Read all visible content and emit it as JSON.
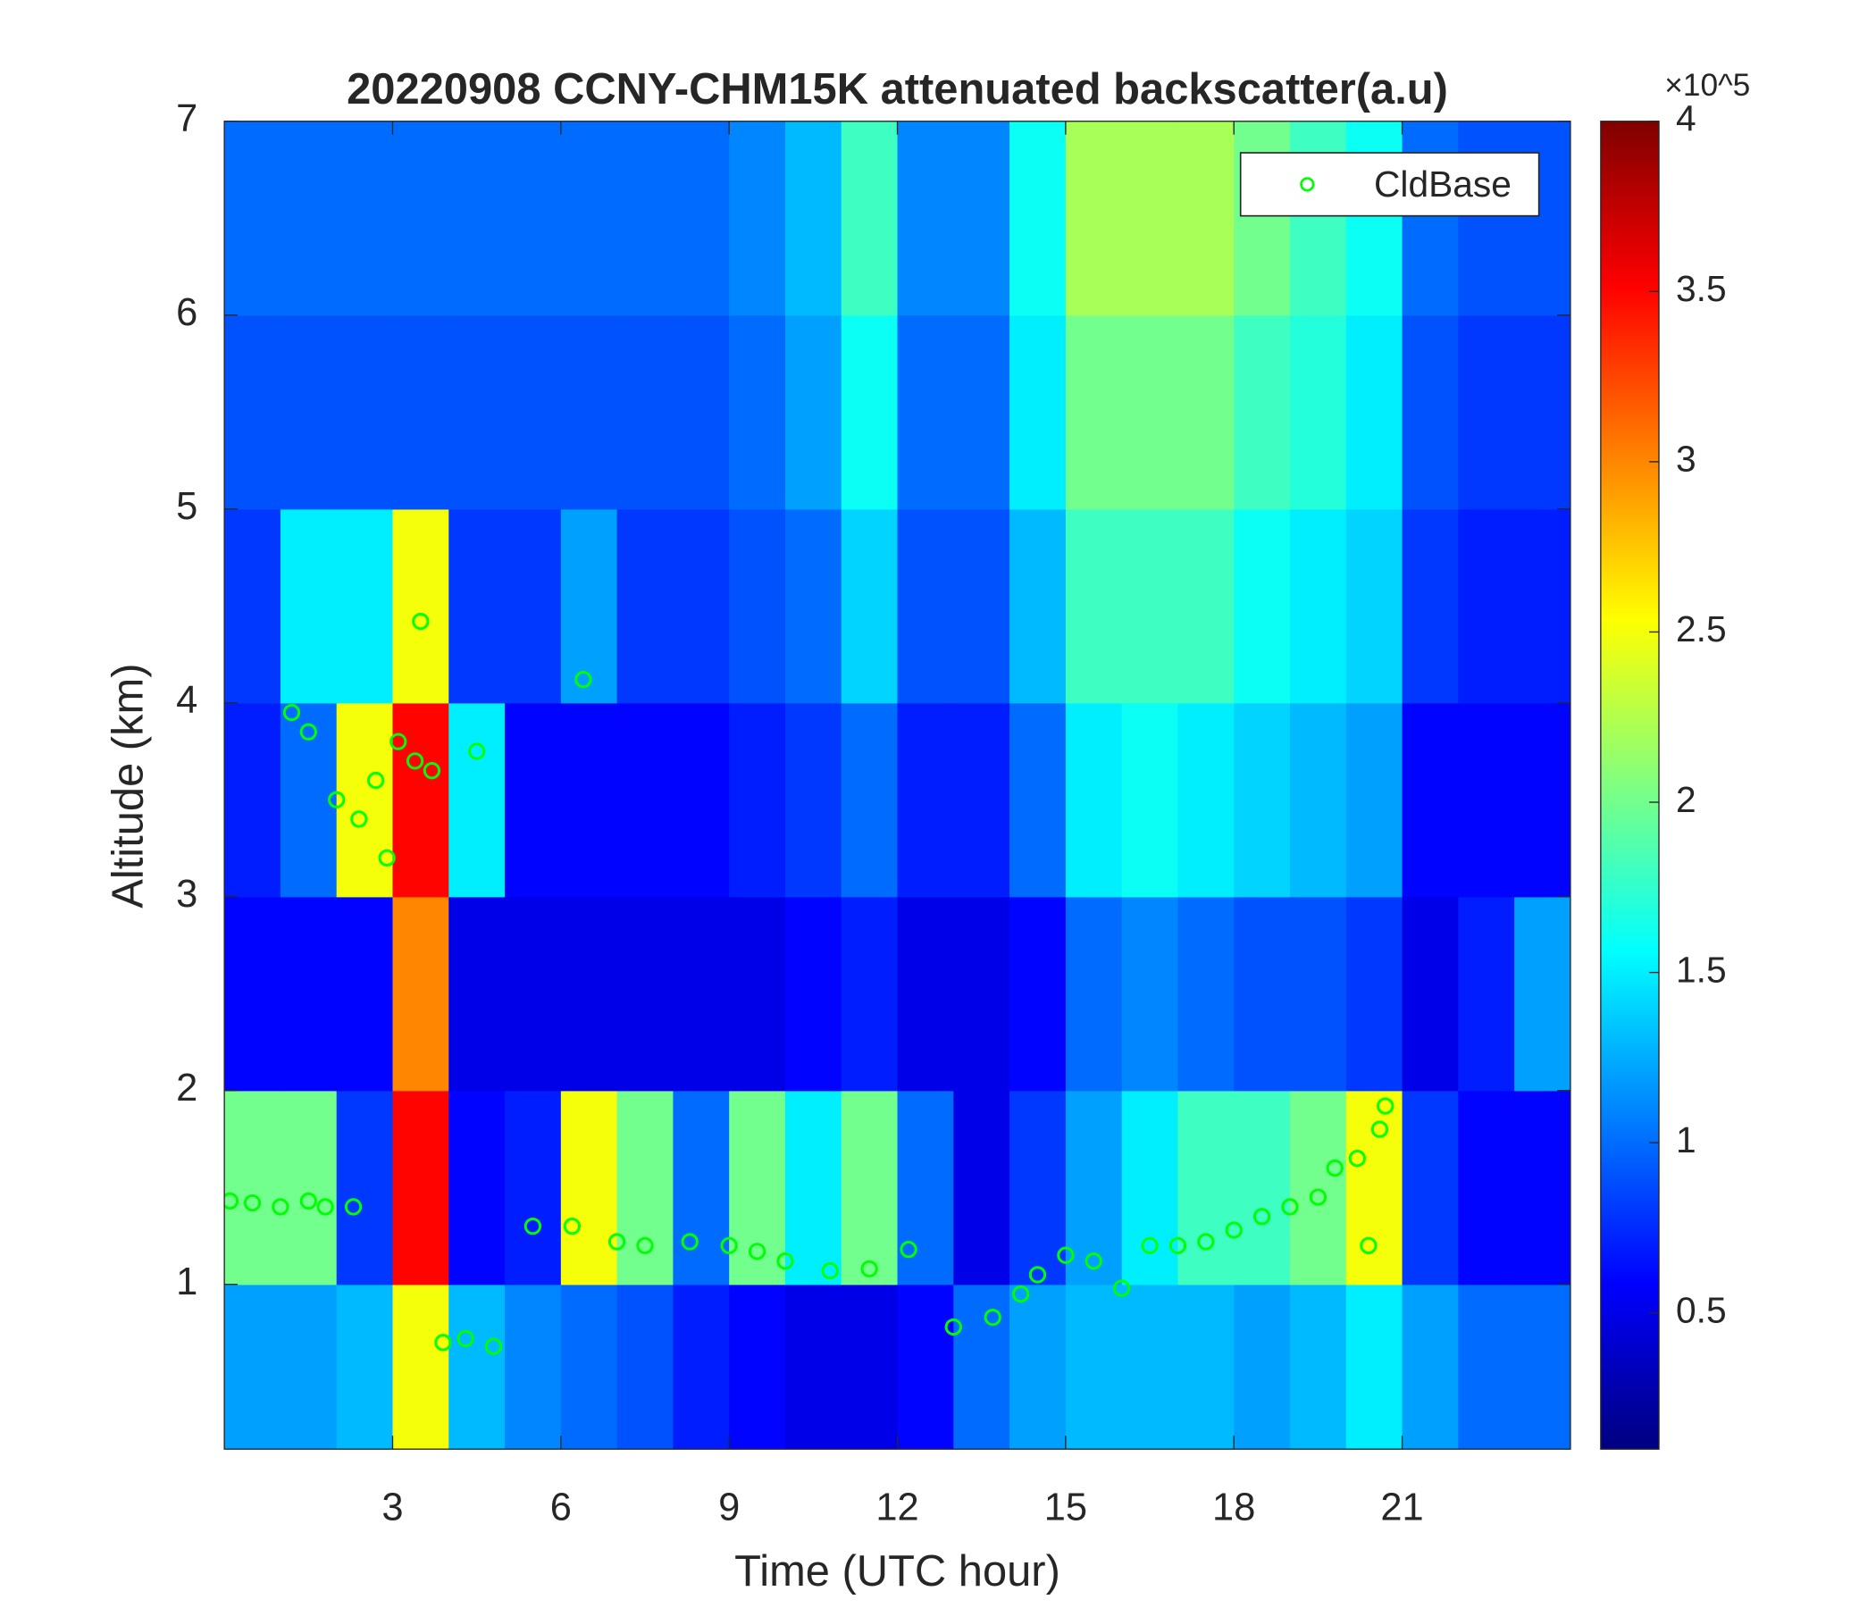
{
  "chart_data": {
    "type": "heatmap",
    "title": "20220908 CCNY-CHM15K attenuated backscatter(a.u)",
    "x_label": "Time (UTC hour)",
    "y_label": "Altitude (km)",
    "x": [
      0.5,
      1.5,
      2.5,
      3.5,
      4.5,
      5.5,
      6.5,
      7.5,
      8.5,
      9.5,
      10.5,
      11.5,
      12.5,
      13.5,
      14.5,
      15.5,
      16.5,
      17.5,
      18.5,
      19.5,
      20.5,
      21.5,
      22.5,
      23.5
    ],
    "y": [
      0.5,
      1.5,
      2.5,
      3.5,
      4.5,
      5.5,
      6.5
    ],
    "z": [
      [
        1.2,
        1.2,
        1.3,
        2.5,
        1.3,
        1.1,
        1.0,
        0.9,
        0.7,
        0.6,
        0.5,
        0.5,
        0.6,
        1.0,
        1.2,
        1.3,
        1.3,
        1.3,
        1.2,
        1.3,
        1.5,
        1.2,
        1.0,
        1.0
      ],
      [
        2.0,
        2.0,
        0.8,
        3.5,
        0.6,
        0.7,
        2.5,
        2.0,
        1.0,
        2.0,
        1.5,
        2.0,
        1.0,
        0.5,
        0.8,
        1.2,
        1.5,
        1.8,
        1.8,
        2.0,
        2.5,
        0.8,
        0.6,
        0.6
      ],
      [
        0.6,
        0.6,
        0.6,
        3.0,
        0.5,
        0.5,
        0.5,
        0.5,
        0.5,
        0.5,
        0.6,
        0.7,
        0.5,
        0.5,
        0.6,
        1.0,
        1.1,
        1.0,
        0.9,
        0.9,
        0.8,
        0.5,
        0.7,
        1.2
      ],
      [
        0.7,
        1.0,
        2.5,
        3.5,
        1.5,
        0.6,
        0.6,
        0.6,
        0.6,
        0.7,
        0.8,
        1.0,
        0.7,
        0.7,
        1.0,
        1.5,
        1.6,
        1.5,
        1.4,
        1.3,
        1.2,
        0.6,
        0.6,
        0.6
      ],
      [
        0.8,
        1.5,
        1.5,
        2.5,
        0.8,
        0.8,
        1.2,
        0.8,
        0.8,
        0.9,
        1.0,
        1.4,
        0.9,
        0.9,
        1.3,
        1.8,
        1.8,
        1.8,
        1.6,
        1.5,
        1.4,
        0.8,
        0.7,
        0.7
      ],
      [
        0.9,
        0.9,
        0.9,
        0.9,
        0.9,
        0.9,
        0.9,
        0.9,
        0.9,
        1.0,
        1.2,
        1.6,
        1.0,
        1.0,
        1.5,
        2.0,
        2.0,
        2.0,
        1.8,
        1.7,
        1.5,
        0.9,
        0.8,
        0.8
      ],
      [
        1.0,
        1.0,
        1.0,
        1.0,
        1.0,
        1.0,
        1.0,
        1.0,
        1.0,
        1.1,
        1.3,
        1.8,
        1.1,
        1.1,
        1.6,
        2.2,
        2.2,
        2.2,
        2.0,
        1.8,
        1.6,
        1.0,
        0.9,
        0.9
      ]
    ],
    "xlim": [
      0,
      24
    ],
    "ylim": [
      0.15,
      7
    ],
    "xticks": [
      3,
      6,
      9,
      12,
      15,
      18,
      21
    ],
    "yticks": [
      1,
      2,
      3,
      4,
      5,
      6,
      7
    ],
    "colormap": "jet",
    "clim": [
      0.1,
      4
    ],
    "colorbar_ticks": [
      0.5,
      1,
      1.5,
      2,
      2.5,
      3,
      3.5,
      4
    ],
    "colorbar_exponent": "×10^5",
    "legend": "top-right",
    "overlay": {
      "type": "scatter",
      "name": "CldBase",
      "color": "#00ff00",
      "x": [
        0.1,
        0.5,
        1,
        1.5,
        1.8,
        2.3,
        1.2,
        1.5,
        2,
        2.4,
        2.7,
        2.9,
        3.1,
        3.4,
        3.7,
        4.5,
        3.5,
        6.4,
        3.9,
        4.3,
        4.8,
        5.5,
        6.2,
        7,
        7.5,
        8.3,
        9,
        9.5,
        10,
        10.8,
        11.5,
        12.2,
        13,
        13.7,
        14.2,
        14.5,
        15,
        15.5,
        16,
        16.5,
        17,
        17.5,
        18,
        18.5,
        19,
        19.5,
        19.8,
        20.2,
        20.4,
        20.6,
        20.7
      ],
      "y": [
        1.43,
        1.42,
        1.4,
        1.43,
        1.4,
        1.4,
        3.95,
        3.85,
        3.5,
        3.4,
        3.6,
        3.2,
        3.8,
        3.7,
        3.65,
        3.75,
        4.42,
        4.12,
        0.7,
        0.72,
        0.68,
        1.3,
        1.3,
        1.22,
        1.2,
        1.22,
        1.2,
        1.17,
        1.12,
        1.07,
        1.08,
        1.18,
        0.78,
        0.83,
        0.95,
        1.05,
        1.15,
        1.12,
        0.98,
        1.2,
        1.2,
        1.22,
        1.28,
        1.35,
        1.4,
        1.45,
        1.6,
        1.65,
        1.2,
        1.8,
        1.92
      ]
    }
  }
}
